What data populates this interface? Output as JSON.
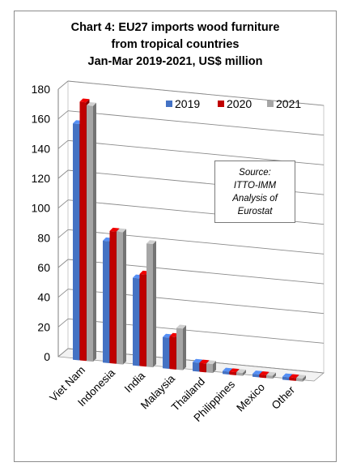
{
  "title_lines": [
    "Chart 4: EU27 imports wood furniture",
    "from tropical countries",
    "Jan-Mar 2019-2021, US$ million"
  ],
  "source_lines": [
    "Source:",
    "ITTO-IMM",
    "Analysis of",
    "Eurostat"
  ],
  "colors": {
    "2019": "#4472c4",
    "2020": "#c00000",
    "2021": "#a6a6a6"
  },
  "chart_data": {
    "type": "bar",
    "title": "Chart 4: EU27 imports wood furniture from tropical countries Jan-Mar 2019-2021, US$ million",
    "categories": [
      "Viet Nam",
      "Indonesia",
      "India",
      "Malaysia",
      "Thailand",
      "Philippines",
      "Mexico",
      "Other"
    ],
    "series": [
      {
        "name": "2019",
        "values": [
          159,
          82,
          59,
          21,
          6,
          2,
          2,
          2
        ]
      },
      {
        "name": "2020",
        "values": [
          174,
          89,
          62,
          22,
          6,
          2,
          2,
          2
        ]
      },
      {
        "name": "2021",
        "values": [
          172,
          89,
          83,
          28,
          6,
          2,
          2,
          2
        ]
      }
    ],
    "yticks": [
      0,
      20,
      40,
      60,
      80,
      100,
      120,
      140,
      160,
      180
    ],
    "ylim": [
      0,
      180
    ],
    "grid": true,
    "legend": "top-right"
  }
}
